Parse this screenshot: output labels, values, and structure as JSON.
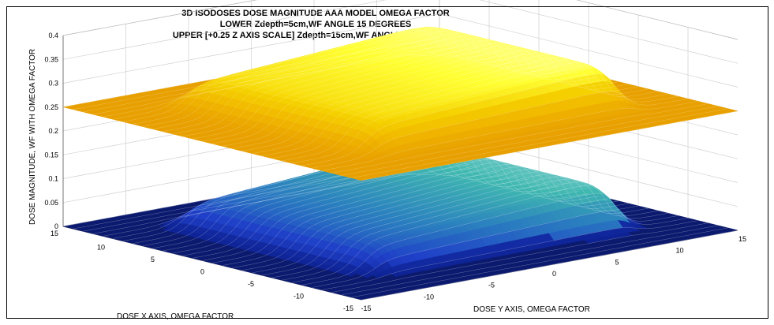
{
  "chart_data": {
    "type": "surface",
    "title": [
      "3D ISODOSES DOSE MAGNITUDE AAA MODEL OMEGA FACTOR",
      "LOWER Zdepth=5cm,WF ANGLE 15 DEGREES",
      "UPPER [+0.25 Z AXIS SCALE] Zdepth=15cm,WF ANGLE 15 DEGREES"
    ],
    "xlabel": "DOSE X AXIS, OMEGA FACTOR",
    "ylabel": "DOSE Y AXIS, OMEGA FACTOR",
    "zlabel": "DOSE MAGNITUDE, WF WITH OMEGA FACTOR",
    "xlim": [
      -15,
      15
    ],
    "ylim": [
      -15,
      15
    ],
    "zlim": [
      0,
      0.4
    ],
    "x_ticks": [
      "-15",
      "-10",
      "-5",
      "0",
      "5",
      "10"
    ],
    "y_ticks": [
      "-15",
      "-10",
      "-5",
      "0",
      "5",
      "10",
      "15"
    ],
    "z_ticks": [
      "0",
      "0.05",
      "0.1",
      "0.15",
      "0.2",
      "0.25",
      "0.3",
      "0.35",
      "0.4"
    ],
    "grid": true,
    "series": [
      {
        "name": "LOWER Zdepth=5cm,WF ANGLE 15 DEGREES",
        "colormap": [
          "#0b1f8f",
          "#1f3fc8",
          "#2a7fbf",
          "#3fb8b0",
          "#b8e0e8"
        ],
        "field_x": [
          -10,
          10
        ],
        "field_y": [
          -10,
          10
        ],
        "plateau_low": 0.06,
        "plateau_high": 0.1,
        "edge_peak": 0.11,
        "outside": 0.0
      },
      {
        "name": "UPPER [+0.25 Z AXIS SCALE] Zdepth=15cm,WF ANGLE 15 DEGREES",
        "colormap": [
          "#e8a000",
          "#f0b400",
          "#f5d000",
          "#ffff33",
          "#ffffcc"
        ],
        "field_x": [
          -10,
          10
        ],
        "field_y": [
          -10,
          10
        ],
        "plateau_low": 0.31,
        "plateau_high": 0.35,
        "edge_peak": 0.36,
        "outside": 0.25
      }
    ]
  }
}
